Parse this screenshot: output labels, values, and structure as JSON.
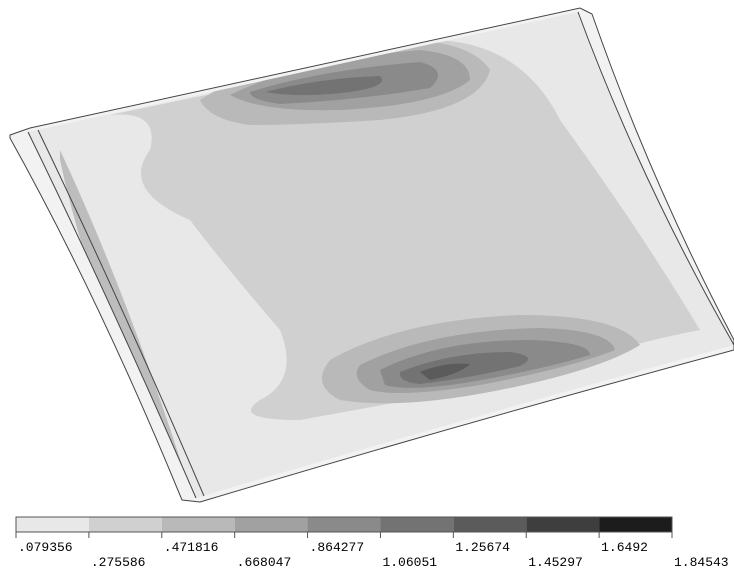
{
  "legend": {
    "ticks": [
      {
        "value": 0.079356,
        "label": ".079356"
      },
      {
        "value": 0.275586,
        "label": ".275586"
      },
      {
        "value": 0.471816,
        "label": ".471816"
      },
      {
        "value": 0.668047,
        "label": ".668047"
      },
      {
        "value": 0.864277,
        "label": ".864277"
      },
      1.06051,
      1.25674,
      1.45297,
      1.6492,
      1.84543
    ],
    "colors": [
      "#e8e8e8",
      "#d0d0d0",
      "#b9b9b9",
      "#a1a1a1",
      "#8a8a8a",
      "#737373",
      "#5b5b5b",
      "#3e3e3e",
      "#1c1c1c"
    ]
  }
}
